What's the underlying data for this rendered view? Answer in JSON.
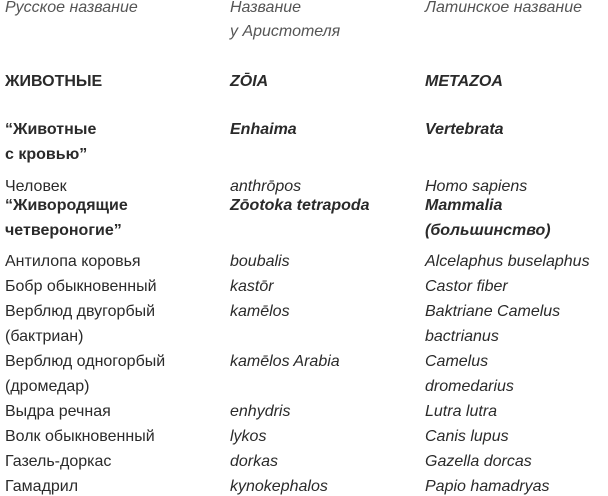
{
  "table": {
    "header": [
      "Русское название",
      "Название\nу Аристотеля",
      "Латинское название"
    ],
    "rows": [
      [
        "ЖИВОТНЫЕ",
        "ZŌIA",
        "METAZOA"
      ],
      [
        "“Животные\nс кровью”",
        "Enhaima",
        "Vertebrata"
      ],
      [
        "Человек",
        "anthrōpos",
        "Homo sapiens"
      ],
      [
        "“Живородящие\nчетвероногие”",
        "Zōotoka tetrapoda",
        "Mammalia\n(большинство)"
      ],
      [
        "Антилопа коровья",
        "boubalis",
        "Alcelaphus buselaphus"
      ],
      [
        "Бобр обыкновенный",
        "kastōr",
        "Castor fiber"
      ],
      [
        "Верблюд двугорбый\n(бактриан)",
        "kamēlos",
        "Baktriane Camelus\nbactrianus"
      ],
      [
        "Верблюд одногорбый\n(дромедар)",
        "kamēlos Arabia",
        "Camelus\ndromedarius"
      ],
      [
        "Выдра речная",
        "enhydris",
        "Lutra lutra"
      ],
      [
        "Волк обыкновенный",
        "lykos",
        "Canis lupus"
      ],
      [
        "Газель-доркас",
        "dorkas",
        "Gazella dorcas"
      ],
      [
        "Гамадрил",
        "kynokephalos",
        "Papio hamadryas"
      ]
    ]
  }
}
